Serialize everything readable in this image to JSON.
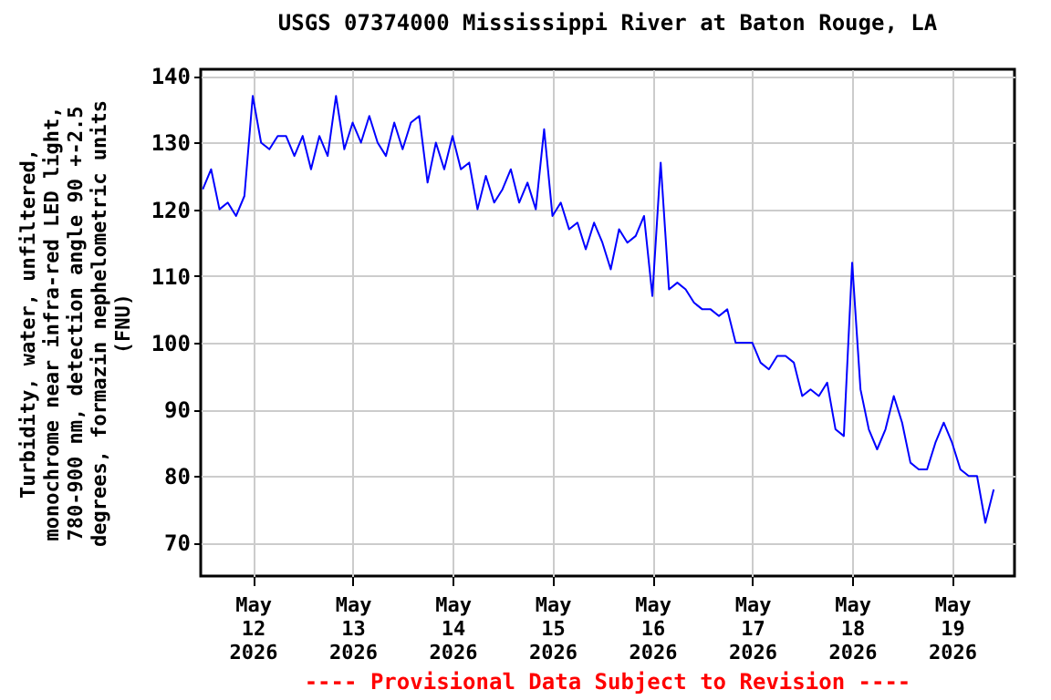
{
  "chart_data": {
    "type": "line",
    "title": "USGS 07374000 Mississippi River at Baton Rouge, LA",
    "ylabel": "Turbidity, water, unfiltered,\nmonochrome near infra-red LED light,\n780-900 nm, detection angle 90 +-2.5\ndegrees, formazin nephelometric units\n(FNU)",
    "annotations": [
      "---- Provisional Data Subject to Revision ----"
    ],
    "x": [
      "2026-05-11T12:00",
      "2026-05-11T14:00",
      "2026-05-11T16:00",
      "2026-05-11T18:00",
      "2026-05-11T20:00",
      "2026-05-11T22:00",
      "2026-05-12T00:00",
      "2026-05-12T02:00",
      "2026-05-12T04:00",
      "2026-05-12T06:00",
      "2026-05-12T08:00",
      "2026-05-12T10:00",
      "2026-05-12T12:00",
      "2026-05-12T14:00",
      "2026-05-12T16:00",
      "2026-05-12T18:00",
      "2026-05-12T20:00",
      "2026-05-12T22:00",
      "2026-05-13T00:00",
      "2026-05-13T02:00",
      "2026-05-13T04:00",
      "2026-05-13T06:00",
      "2026-05-13T08:00",
      "2026-05-13T10:00",
      "2026-05-13T12:00",
      "2026-05-13T14:00",
      "2026-05-13T16:00",
      "2026-05-13T18:00",
      "2026-05-13T20:00",
      "2026-05-13T22:00",
      "2026-05-14T00:00",
      "2026-05-14T02:00",
      "2026-05-14T04:00",
      "2026-05-14T06:00",
      "2026-05-14T08:00",
      "2026-05-14T10:00",
      "2026-05-14T12:00",
      "2026-05-14T14:00",
      "2026-05-14T16:00",
      "2026-05-14T18:00",
      "2026-05-14T20:00",
      "2026-05-14T22:00",
      "2026-05-15T00:00",
      "2026-05-15T02:00",
      "2026-05-15T04:00",
      "2026-05-15T06:00",
      "2026-05-15T08:00",
      "2026-05-15T10:00",
      "2026-05-15T12:00",
      "2026-05-15T14:00",
      "2026-05-15T16:00",
      "2026-05-15T18:00",
      "2026-05-15T20:00",
      "2026-05-15T22:00",
      "2026-05-16T00:00",
      "2026-05-16T02:00",
      "2026-05-16T04:00",
      "2026-05-16T06:00",
      "2026-05-16T08:00",
      "2026-05-16T10:00",
      "2026-05-16T12:00",
      "2026-05-16T14:00",
      "2026-05-16T16:00",
      "2026-05-16T18:00",
      "2026-05-16T20:00",
      "2026-05-16T22:00",
      "2026-05-17T00:00",
      "2026-05-17T02:00",
      "2026-05-17T04:00",
      "2026-05-17T06:00",
      "2026-05-17T08:00",
      "2026-05-17T10:00",
      "2026-05-17T12:00",
      "2026-05-17T14:00",
      "2026-05-17T16:00",
      "2026-05-17T18:00",
      "2026-05-17T20:00",
      "2026-05-17T22:00",
      "2026-05-18T00:00",
      "2026-05-18T02:00",
      "2026-05-18T04:00",
      "2026-05-18T06:00",
      "2026-05-18T08:00",
      "2026-05-18T10:00",
      "2026-05-18T12:00",
      "2026-05-18T14:00",
      "2026-05-18T16:00",
      "2026-05-18T18:00",
      "2026-05-18T20:00",
      "2026-05-18T22:00",
      "2026-05-19T00:00",
      "2026-05-19T02:00",
      "2026-05-19T04:00",
      "2026-05-19T06:00",
      "2026-05-19T08:00",
      "2026-05-19T10:00"
    ],
    "series": [
      {
        "color": "#0000ff",
        "values": [
          123,
          126,
          120,
          121,
          119,
          122,
          137,
          130,
          129,
          131,
          131,
          128,
          131,
          126,
          131,
          128,
          137,
          129,
          133,
          130,
          134,
          130,
          128,
          133,
          129,
          133,
          134,
          124,
          130,
          126,
          131,
          126,
          127,
          120,
          125,
          121,
          123,
          126,
          121,
          124,
          120,
          132,
          119,
          121,
          117,
          118,
          114,
          118,
          115,
          111,
          117,
          115,
          116,
          119,
          107,
          127,
          108,
          109,
          108,
          106,
          105,
          105,
          104,
          105,
          100,
          100,
          100,
          97,
          96,
          98,
          98,
          97,
          92,
          93,
          92,
          94,
          87,
          86,
          112,
          93,
          87,
          84,
          87,
          92,
          88,
          82,
          81,
          81,
          85,
          88,
          85,
          81,
          80,
          80,
          73,
          78
        ]
      }
    ],
    "xlim": [
      "2026-05-11T11:30",
      "2026-05-19T15:00"
    ],
    "xticks": [
      {
        "value": "2026-05-12T00:00",
        "label": "May 12 2026"
      },
      {
        "value": "2026-05-13T00:00",
        "label": "May 13 2026"
      },
      {
        "value": "2026-05-14T00:00",
        "label": "May 14 2026"
      },
      {
        "value": "2026-05-15T00:00",
        "label": "May 15 2026"
      },
      {
        "value": "2026-05-16T00:00",
        "label": "May 16 2026"
      },
      {
        "value": "2026-05-17T00:00",
        "label": "May 17 2026"
      },
      {
        "value": "2026-05-18T00:00",
        "label": "May 18 2026"
      },
      {
        "value": "2026-05-19T00:00",
        "label": "May 19 2026"
      }
    ],
    "ylim": [
      65,
      141
    ],
    "yticks": [
      70,
      80,
      90,
      100,
      110,
      120,
      130,
      140
    ],
    "grid": true
  }
}
